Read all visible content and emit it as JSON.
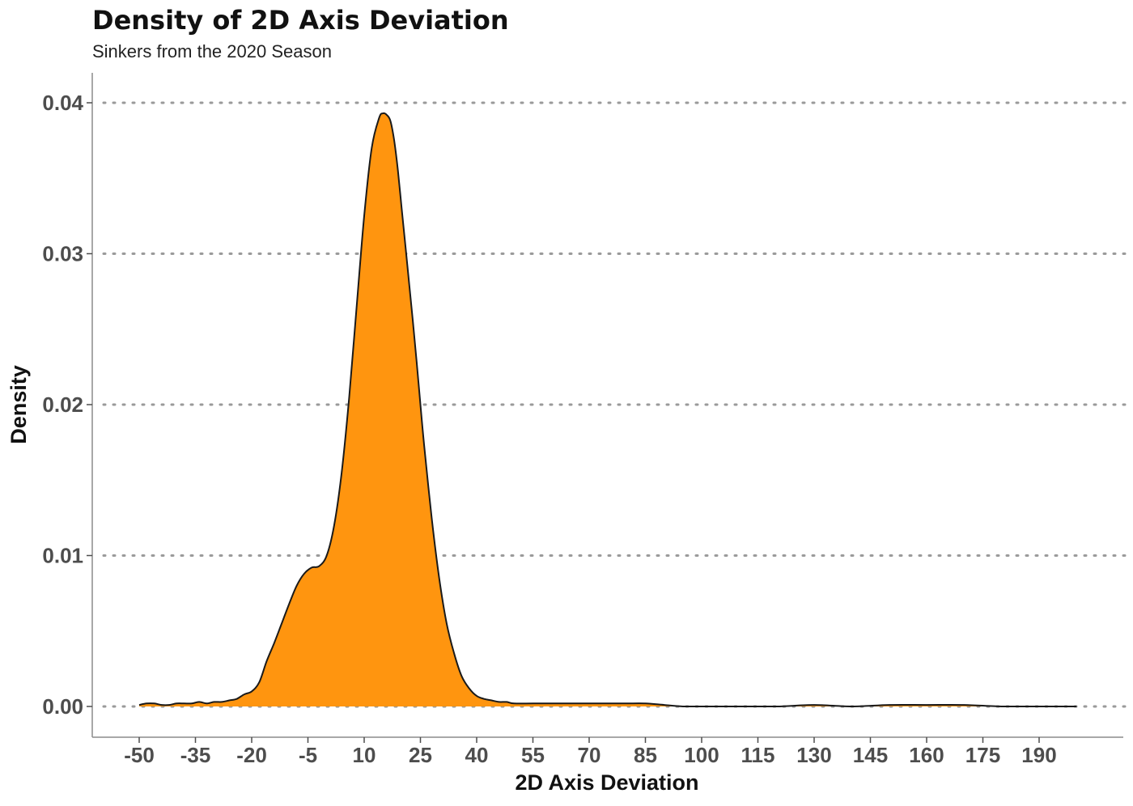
{
  "chart_data": {
    "type": "area",
    "title": "Density of 2D Axis Deviation",
    "subtitle": "Sinkers from the 2020 Season",
    "xlabel": "2D Axis Deviation",
    "ylabel": "Density",
    "xlim": [
      -50,
      203
    ],
    "ylim": [
      0,
      0.04
    ],
    "x_ticks": [
      -50,
      -35,
      -20,
      -5,
      10,
      25,
      40,
      55,
      70,
      85,
      100,
      115,
      130,
      145,
      160,
      175,
      190
    ],
    "x_tick_labels": [
      "-50",
      "-35",
      "-20",
      "-5",
      "10",
      "25",
      "40",
      "55",
      "70",
      "85",
      "100",
      "115",
      "130",
      "145",
      "160",
      "175",
      "190"
    ],
    "y_ticks": [
      0,
      0.01,
      0.02,
      0.03,
      0.04
    ],
    "y_tick_labels": [
      "0.00",
      "0.01",
      "0.02",
      "0.03",
      "0.04"
    ],
    "grid": "horizontal-dotted",
    "fill_color": "#FF950F",
    "line_color": "#1a1a1a",
    "series": [
      {
        "x": [
          -50,
          -48,
          -46,
          -44,
          -42,
          -40,
          -38,
          -36,
          -34,
          -32,
          -30,
          -28,
          -26,
          -24,
          -22,
          -20,
          -18,
          -16,
          -14,
          -12,
          -10,
          -8,
          -6,
          -4,
          -2,
          0,
          2,
          4,
          6,
          8,
          10,
          12,
          14,
          15,
          16,
          17,
          18,
          19,
          20,
          21,
          22,
          23,
          24,
          25,
          26,
          28,
          30,
          32,
          34,
          36,
          38,
          40,
          42,
          44,
          46,
          48,
          50,
          55,
          60,
          65,
          70,
          75,
          80,
          85,
          90,
          95,
          100,
          110,
          120,
          130,
          140,
          150,
          160,
          170,
          180,
          190,
          200
        ],
        "y": [
          0.0001,
          0.0002,
          0.0002,
          0.0001,
          0.0001,
          0.0002,
          0.0002,
          0.0002,
          0.0003,
          0.0002,
          0.0003,
          0.0003,
          0.0004,
          0.0005,
          0.0008,
          0.001,
          0.0016,
          0.003,
          0.0042,
          0.0055,
          0.0068,
          0.008,
          0.0088,
          0.0092,
          0.0093,
          0.01,
          0.012,
          0.0155,
          0.0205,
          0.0265,
          0.0325,
          0.037,
          0.039,
          0.0393,
          0.0392,
          0.0388,
          0.0375,
          0.0355,
          0.033,
          0.0305,
          0.028,
          0.0255,
          0.0228,
          0.02,
          0.0173,
          0.0125,
          0.0085,
          0.0055,
          0.0035,
          0.002,
          0.0012,
          0.0007,
          0.0005,
          0.0004,
          0.0003,
          0.0003,
          0.0002,
          0.0002,
          0.0002,
          0.0002,
          0.0002,
          0.0002,
          0.0002,
          0.0002,
          0.0001,
          0.0,
          0.0,
          0.0,
          0.0,
          0.0001,
          0.0,
          0.0001,
          0.0001,
          0.0001,
          0.0,
          0.0,
          0.0
        ]
      }
    ]
  }
}
